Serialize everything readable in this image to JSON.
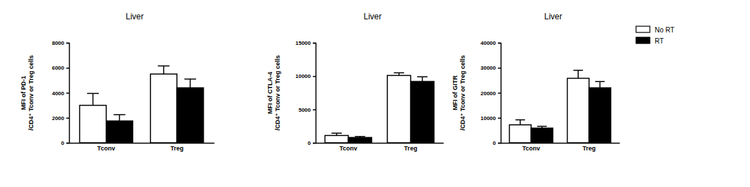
{
  "chart_data": [
    {
      "type": "bar",
      "title": "Liver",
      "y_label": [
        "MFI of PD-1",
        "/CD4⁺ Tconv or Treg cells"
      ],
      "categories": [
        "Tconv",
        "Treg"
      ],
      "series": [
        {
          "name": "No RT",
          "color": "#ffffff",
          "values": [
            3000,
            5500
          ],
          "errors": [
            950,
            650
          ]
        },
        {
          "name": "RT",
          "color": "#000000",
          "values": [
            1750,
            4400
          ],
          "errors": [
            500,
            700
          ]
        }
      ],
      "ylim": [
        0,
        8000
      ],
      "yticks": [
        0,
        2000,
        4000,
        6000,
        8000
      ]
    },
    {
      "type": "bar",
      "title": "Liver",
      "y_label": [
        "MFI of CTLA-4",
        "/CD4⁺ Tconv or Treg cells"
      ],
      "categories": [
        "Tconv",
        "Treg"
      ],
      "series": [
        {
          "name": "No RT",
          "color": "#ffffff",
          "values": [
            1100,
            10100
          ],
          "errors": [
            350,
            400
          ]
        },
        {
          "name": "RT",
          "color": "#000000",
          "values": [
            800,
            9200
          ],
          "errors": [
            150,
            700
          ]
        }
      ],
      "ylim": [
        0,
        15000
      ],
      "yticks": [
        0,
        5000,
        10000,
        15000
      ]
    },
    {
      "type": "bar",
      "title": "Liver",
      "y_label": [
        "MFI of GITR",
        "/CD4⁺ Tconv or Treg cells"
      ],
      "categories": [
        "Tconv",
        "Treg"
      ],
      "series": [
        {
          "name": "No RT",
          "color": "#ffffff",
          "values": [
            7200,
            25800
          ],
          "errors": [
            2000,
            3200
          ]
        },
        {
          "name": "RT",
          "color": "#000000",
          "values": [
            5900,
            22000
          ],
          "errors": [
            700,
            2500
          ]
        }
      ],
      "ylim": [
        0,
        40000
      ],
      "yticks": [
        0,
        10000,
        20000,
        30000,
        40000
      ],
      "legend": "top-right"
    }
  ]
}
